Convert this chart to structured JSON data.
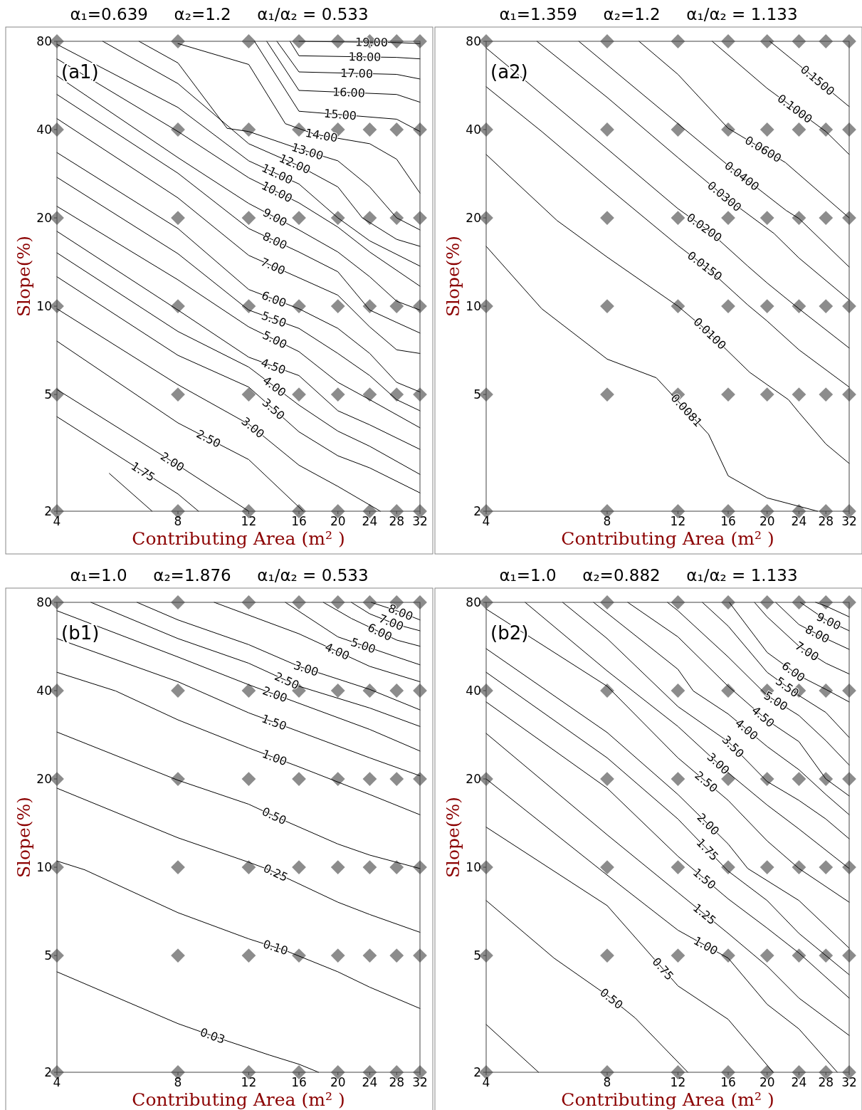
{
  "chart_data": [
    {
      "type": "line",
      "title": "α₁=0.639     α₂=1.2     α₁/α₂ = 0.533",
      "xlabel": "Contributing Area (m² )",
      "ylabel": "Slope(%)",
      "annotations": [
        "(a1)"
      ],
      "log": "xy",
      "xlim": [
        4,
        32
      ],
      "ylim": [
        2,
        80
      ],
      "xticks": [
        4,
        8,
        12,
        16,
        20,
        24,
        28,
        32
      ],
      "yticks": [
        2,
        5,
        10,
        20,
        40,
        80
      ],
      "marker": "none",
      "line_style": "solid",
      "series": [
        {
          "type": "scatter",
          "marker": "diamond",
          "color": "#8c8c8c",
          "x": [
            4,
            8,
            12,
            16,
            20,
            24,
            28,
            32,
            4,
            8,
            12,
            16,
            20,
            24,
            28,
            32,
            4,
            8,
            12,
            16,
            20,
            24,
            28,
            32,
            4,
            8,
            12,
            16,
            20,
            24,
            28,
            32,
            4,
            8,
            12,
            16,
            20,
            24,
            28,
            32,
            4,
            8,
            12,
            16,
            20,
            24,
            28,
            32
          ],
          "values": [
            2,
            2,
            2,
            2,
            2,
            2,
            2,
            2,
            5,
            5,
            5,
            5,
            5,
            5,
            5,
            5,
            10,
            10,
            10,
            10,
            10,
            10,
            10,
            10,
            20,
            20,
            20,
            20,
            20,
            20,
            20,
            20,
            40,
            40,
            40,
            40,
            40,
            40,
            40,
            40,
            80,
            80,
            80,
            80,
            80,
            80,
            80,
            80
          ]
        },
        {
          "name": "19.00",
          "color": "#000000",
          "x": [
            16,
            28,
            32
          ],
          "values": [
            80,
            79.2,
            78.6
          ]
        },
        {
          "name": "18.00",
          "color": "#000000",
          "x": [
            15.2,
            16,
            28,
            32
          ],
          "values": [
            80,
            71.4,
            70.5,
            69.7
          ]
        },
        {
          "name": "17.00",
          "color": "#000000",
          "x": [
            14.1,
            16,
            28,
            32
          ],
          "values": [
            80,
            62.9,
            61.7,
            59.5
          ]
        },
        {
          "name": "16.00",
          "color": "#000000",
          "x": [
            13.3,
            16,
            28,
            32
          ],
          "values": [
            80,
            54.4,
            52.7,
            49.6
          ]
        },
        {
          "name": "15.00",
          "color": "#000000",
          "x": [
            12.4,
            16,
            28,
            32
          ],
          "values": [
            80,
            46.2,
            43.4,
            39.4
          ]
        },
        {
          "name": "14.00",
          "color": "#000000",
          "x": [
            8,
            12,
            14.8,
            17.6,
            24,
            28,
            32
          ],
          "values": [
            78.6,
            66.7,
            41.9,
            38.5,
            35.8,
            31.7,
            24.3
          ]
        },
        {
          "name": "13.00",
          "color": "#000000",
          "x": [
            6.4,
            8,
            10.6,
            12,
            16,
            20,
            24,
            28,
            32
          ],
          "values": [
            80,
            67.5,
            40.4,
            39.4,
            34.4,
            31.3,
            25.5,
            20,
            18.2
          ]
        },
        {
          "name": "12.00",
          "color": "#000000",
          "x": [
            5.2,
            8,
            12,
            16,
            20,
            23,
            28,
            32
          ],
          "values": [
            80,
            57.4,
            35.8,
            30.1,
            25.5,
            20,
            16.9,
            16
          ]
        },
        {
          "name": "11.00",
          "color": "#000000",
          "x": [
            4,
            8,
            12,
            16,
            20,
            24,
            32
          ],
          "values": [
            78.1,
            47.6,
            31.3,
            26.1,
            20,
            16.7,
            13.7
          ]
        },
        {
          "name": "10.00",
          "color": "#000000",
          "x": [
            4,
            8,
            12,
            16,
            20,
            24,
            32
          ],
          "values": [
            69.7,
            39.4,
            27.4,
            22.5,
            18.6,
            15.3,
            11.7
          ]
        },
        {
          "name": "9.00",
          "color": "#000000",
          "x": [
            4,
            8,
            12,
            16,
            20,
            24,
            28,
            32
          ],
          "values": [
            61,
            32.1,
            22.4,
            18.2,
            15.3,
            12.6,
            10.4,
            9.7
          ]
        },
        {
          "name": "8.00",
          "color": "#000000",
          "x": [
            4,
            8,
            12,
            16,
            20,
            24,
            28,
            32
          ],
          "values": [
            52.7,
            28.4,
            18.4,
            15.3,
            13.1,
            9.7,
            8.8,
            8.1
          ]
        },
        {
          "name": "7.00",
          "color": "#000000",
          "x": [
            4,
            8,
            12,
            16,
            20,
            24,
            28,
            32
          ],
          "values": [
            43.6,
            23.4,
            14.9,
            12.5,
            10.9,
            8.5,
            7.1,
            6.9
          ]
        },
        {
          "name": "6.00",
          "color": "#000000",
          "x": [
            4,
            8,
            12,
            16,
            20,
            24,
            28,
            32
          ],
          "values": [
            33.4,
            18.4,
            11.4,
            9.8,
            8.4,
            6.9,
            5.5,
            5.1
          ]
        },
        {
          "name": "5.50",
          "color": "#000000",
          "x": [
            4,
            8,
            12,
            16,
            20,
            24,
            28,
            32
          ],
          "values": [
            27.5,
            15.1,
            9.7,
            8.4,
            6.9,
            5.8,
            4.8,
            4.4
          ]
        },
        {
          "name": "5.00",
          "color": "#000000",
          "x": [
            4,
            8,
            12,
            16,
            20,
            24,
            32
          ],
          "values": [
            21.9,
            12.3,
            8.5,
            7,
            5.5,
            4.8,
            3.85
          ]
        },
        {
          "name": "4.50",
          "color": "#000000",
          "x": [
            4,
            8,
            12,
            16,
            20,
            24,
            32
          ],
          "values": [
            18,
            9.7,
            6.7,
            5.8,
            4.4,
            3.94,
            3.25
          ]
        },
        {
          "name": "4.00",
          "color": "#000000",
          "x": [
            4,
            8,
            12,
            16,
            20,
            24,
            32
          ],
          "values": [
            15.2,
            8.2,
            6.2,
            4.6,
            3.75,
            3.33,
            2.67
          ]
        },
        {
          "name": "3.50",
          "color": "#000000",
          "x": [
            4,
            8,
            12,
            16,
            20,
            24,
            32
          ],
          "values": [
            12.6,
            6.8,
            5.3,
            3.73,
            3.09,
            2.81,
            2.31
          ]
        },
        {
          "name": "3.00",
          "color": "#000000",
          "x": [
            4,
            8,
            12,
            16,
            20,
            25.5
          ],
          "values": [
            9.8,
            5.4,
            3.96,
            2.87,
            2.43,
            2
          ]
        },
        {
          "name": "2.50",
          "color": "#000000",
          "x": [
            4,
            8,
            12,
            16.4
          ],
          "values": [
            7.6,
            4,
            3,
            2
          ]
        },
        {
          "name": "2.00",
          "color": "#000000",
          "x": [
            4,
            8,
            12
          ],
          "values": [
            5.2,
            2.87,
            2
          ]
        },
        {
          "name": "1.75",
          "color": "#000000",
          "x": [
            4,
            8,
            9
          ],
          "values": [
            4.2,
            2.29,
            2
          ]
        },
        {
          "color": "#000000",
          "x": [
            5.4,
            6.9
          ],
          "values": [
            2.69,
            2
          ]
        }
      ]
    },
    {
      "type": "line",
      "title": "α₁=1.359     α₂=1.2     α₁/α₂ = 1.133",
      "xlabel": "Contributing Area (m² )",
      "ylabel": "Slope(%)",
      "annotations": [
        "(a2)"
      ],
      "log": "xy",
      "xlim": [
        4,
        32
      ],
      "ylim": [
        2,
        80
      ],
      "xticks": [
        4,
        8,
        12,
        16,
        20,
        24,
        28,
        32
      ],
      "yticks": [
        2,
        5,
        10,
        20,
        40,
        80
      ],
      "marker": "none",
      "line_style": "solid",
      "series": [
        {
          "type": "scatter",
          "marker": "diamond",
          "color": "#8c8c8c",
          "x": [
            4,
            8,
            12,
            16,
            20,
            24,
            28,
            32,
            4,
            8,
            12,
            16,
            20,
            24,
            28,
            32,
            4,
            8,
            12,
            16,
            20,
            24,
            28,
            32,
            4,
            8,
            12,
            16,
            20,
            24,
            28,
            32,
            4,
            8,
            12,
            16,
            20,
            24,
            28,
            32,
            4,
            8,
            12,
            16,
            20,
            24,
            28,
            32
          ],
          "values": [
            2,
            2,
            2,
            2,
            2,
            2,
            2,
            2,
            5,
            5,
            5,
            5,
            5,
            5,
            5,
            5,
            10,
            10,
            10,
            10,
            10,
            10,
            10,
            10,
            20,
            20,
            20,
            20,
            20,
            20,
            20,
            20,
            40,
            40,
            40,
            40,
            40,
            40,
            40,
            40,
            80,
            80,
            80,
            80,
            80,
            80,
            80,
            80
          ]
        },
        {
          "name": "0.1500",
          "color": "#000000",
          "x": [
            20.3,
            24,
            32
          ],
          "values": [
            80,
            66.4,
            47.9
          ]
        },
        {
          "name": "0.1000",
          "color": "#000000",
          "x": [
            14.6,
            20,
            28,
            32
          ],
          "values": [
            80,
            55.3,
            39.4,
            32.9
          ]
        },
        {
          "name": "0.0600",
          "color": "#000000",
          "x": [
            9.6,
            12,
            16,
            22.2,
            32
          ],
          "values": [
            80,
            61.7,
            40.4,
            30.9,
            20
          ]
        },
        {
          "name": "0.0400",
          "color": "#000000",
          "x": [
            6.8,
            12,
            16,
            22.3,
            24,
            32
          ],
          "values": [
            80,
            41.9,
            30.2,
            21.2,
            19.9,
            13.6
          ]
        },
        {
          "name": "0.0300",
          "color": "#000000",
          "x": [
            5.35,
            8,
            12,
            16,
            20.8,
            24,
            32
          ],
          "values": [
            80,
            51.5,
            32.1,
            23.1,
            17.7,
            14.6,
            10.5
          ]
        },
        {
          "name": "0.0200",
          "color": "#000000",
          "x": [
            4,
            8,
            12,
            14.3,
            17.9,
            20,
            24,
            32
          ],
          "values": [
            75.9,
            34.4,
            21.5,
            18.1,
            13.7,
            12,
            9.8,
            7.2
          ]
        },
        {
          "name": "0.0150",
          "color": "#000000",
          "x": [
            4,
            5.5,
            8,
            12,
            14.1,
            17.9,
            20,
            24,
            32
          ],
          "values": [
            56,
            39.4,
            25.5,
            16.1,
            13.6,
            10.1,
            8.9,
            7.1,
            5.3
          ]
        },
        {
          "name": "0.0100",
          "color": "#000000",
          "x": [
            4,
            6,
            8,
            12,
            14.1,
            18.1,
            20,
            22.6,
            24,
            28,
            32
          ],
          "values": [
            32.9,
            19.6,
            14.7,
            10,
            8.3,
            5.95,
            5.4,
            4.8,
            4.34,
            3.39,
            2.91
          ]
        },
        {
          "name": "0.0081",
          "color": "#000000",
          "x": [
            4,
            5.5,
            8,
            10.6,
            14.3,
            16,
            20,
            26.7
          ],
          "values": [
            16,
            9.8,
            6.6,
            5.7,
            3.66,
            2.64,
            2.22,
            2
          ]
        }
      ]
    },
    {
      "type": "line",
      "title": "α₁=1.0     α₂=1.876     α₁/α₂ = 0.533",
      "xlabel": "Contributing Area (m² )",
      "ylabel": "Slope(%)",
      "annotations": [
        "(b1)"
      ],
      "log": "xy",
      "xlim": [
        4,
        32
      ],
      "ylim": [
        2,
        80
      ],
      "xticks": [
        4,
        8,
        12,
        16,
        20,
        24,
        28,
        32
      ],
      "yticks": [
        2,
        5,
        10,
        20,
        40,
        80
      ],
      "marker": "none",
      "line_style": "solid",
      "series": [
        {
          "type": "scatter",
          "marker": "diamond",
          "color": "#8c8c8c",
          "x": [
            4,
            8,
            12,
            16,
            20,
            24,
            28,
            32,
            4,
            8,
            12,
            16,
            20,
            24,
            28,
            32,
            4,
            8,
            12,
            16,
            20,
            24,
            28,
            32,
            4,
            8,
            12,
            16,
            20,
            24,
            28,
            32,
            4,
            8,
            12,
            16,
            20,
            24,
            28,
            32,
            4,
            8,
            12,
            16,
            20,
            24,
            28,
            32
          ],
          "values": [
            2,
            2,
            2,
            2,
            2,
            2,
            2,
            2,
            5,
            5,
            5,
            5,
            5,
            5,
            5,
            5,
            10,
            10,
            10,
            10,
            10,
            10,
            10,
            10,
            20,
            20,
            20,
            20,
            20,
            20,
            20,
            20,
            40,
            40,
            40,
            40,
            40,
            40,
            40,
            40,
            80,
            80,
            80,
            80,
            80,
            80,
            80,
            80
          ]
        },
        {
          "name": "8.00",
          "color": "#000000",
          "x": [
            24.2,
            28,
            32
          ],
          "values": [
            80,
            74.9,
            69.7
          ]
        },
        {
          "name": "7.00",
          "color": "#000000",
          "x": [
            21.6,
            24,
            28,
            32
          ],
          "values": [
            80,
            73.1,
            67.2,
            64
          ]
        },
        {
          "name": "6.00",
          "color": "#000000",
          "x": [
            18.4,
            21.6,
            28,
            32
          ],
          "values": [
            80,
            70.5,
            59.5,
            56.7
          ]
        },
        {
          "name": "5.00",
          "color": "#000000",
          "x": [
            14.8,
            20,
            28,
            32
          ],
          "values": [
            80,
            61,
            52.1,
            49
          ]
        },
        {
          "name": "4.00",
          "color": "#000000",
          "x": [
            9.85,
            16,
            24,
            32
          ],
          "values": [
            80,
            62.5,
            48.4,
            42.9
          ]
        },
        {
          "name": "3.00",
          "color": "#000000",
          "x": [
            6.33,
            8,
            12,
            16,
            24,
            32
          ],
          "values": [
            80,
            69.7,
            57.4,
            48.4,
            40.4,
            34.4
          ]
        },
        {
          "name": "2.50",
          "color": "#000000",
          "x": [
            4.86,
            8,
            12,
            16,
            24,
            32
          ],
          "values": [
            80,
            60.2,
            49.6,
            41.4,
            34.9,
            30.2
          ]
        },
        {
          "name": "2.00",
          "color": "#000000",
          "x": [
            4,
            8,
            12,
            24,
            32
          ],
          "values": [
            74.9,
            52.1,
            41.9,
            29.5,
            24.9
          ]
        },
        {
          "name": "1.50",
          "color": "#000000",
          "x": [
            4,
            8,
            12,
            24,
            32
          ],
          "values": [
            60.2,
            42.9,
            33.6,
            23.6,
            20.5
          ]
        },
        {
          "name": "1.00",
          "color": "#000000",
          "x": [
            4,
            5.6,
            8,
            12,
            16,
            24,
            32
          ],
          "values": [
            46.2,
            39.9,
            31.8,
            25.5,
            22,
            17.7,
            15.1
          ]
        },
        {
          "name": "0.50",
          "color": "#000000",
          "x": [
            4,
            8,
            12,
            14.1,
            20,
            24,
            32
          ],
          "values": [
            28.9,
            19.8,
            16.4,
            14.8,
            12,
            11,
            9.9
          ]
        },
        {
          "name": "0.25",
          "color": "#000000",
          "x": [
            4,
            8,
            12,
            13.5,
            20,
            24,
            32
          ],
          "values": [
            18.6,
            12.6,
            10.4,
            9.8,
            7.6,
            6.9,
            6
          ]
        },
        {
          "name": "0.10",
          "color": "#000000",
          "x": [
            4,
            4.69,
            8,
            12,
            14.8,
            20,
            24,
            32
          ],
          "values": [
            10.5,
            9.8,
            7,
            5.7,
            5.2,
            4.4,
            3.9,
            3.3
          ]
        },
        {
          "name": "0.03",
          "color": "#000000",
          "x": [
            4,
            8,
            10.4,
            13.5,
            16,
            17.9
          ],
          "values": [
            4.4,
            2.93,
            2.58,
            2.29,
            2.13,
            2
          ]
        }
      ]
    },
    {
      "type": "line",
      "title": "α₁=1.0     α₂=0.882     α₁/α₂ = 1.133",
      "xlabel": "Contributing Area (m² )",
      "ylabel": "Slope(%)",
      "annotations": [
        "(b2)"
      ],
      "log": "xy",
      "xlim": [
        4,
        32
      ],
      "ylim": [
        2,
        80
      ],
      "xticks": [
        4,
        8,
        12,
        16,
        20,
        24,
        28,
        32
      ],
      "yticks": [
        2,
        5,
        10,
        20,
        40,
        80
      ],
      "marker": "none",
      "line_style": "solid",
      "series": [
        {
          "type": "scatter",
          "marker": "diamond",
          "color": "#8c8c8c",
          "x": [
            4,
            8,
            12,
            16,
            20,
            24,
            28,
            32,
            4,
            8,
            12,
            16,
            20,
            24,
            28,
            32,
            4,
            8,
            12,
            16,
            20,
            24,
            28,
            32,
            4,
            8,
            12,
            16,
            20,
            24,
            28,
            32,
            4,
            8,
            12,
            16,
            20,
            24,
            28,
            32,
            4,
            8,
            12,
            16,
            20,
            24,
            28,
            32
          ],
          "values": [
            2,
            2,
            2,
            2,
            2,
            2,
            2,
            2,
            5,
            5,
            5,
            5,
            5,
            5,
            5,
            5,
            10,
            10,
            10,
            10,
            10,
            10,
            10,
            10,
            20,
            20,
            20,
            20,
            20,
            20,
            20,
            20,
            40,
            40,
            40,
            40,
            40,
            40,
            40,
            40,
            80,
            80,
            80,
            80,
            80,
            80,
            80,
            80
          ]
        },
        {
          "color": "#000000",
          "x": [
            26.4,
            28,
            32
          ],
          "values": [
            80,
            77.7,
            71.4
          ]
        },
        {
          "name": "9.00",
          "color": "#000000",
          "x": [
            24.2,
            28,
            32
          ],
          "values": [
            80,
            69.7,
            64
          ]
        },
        {
          "name": "8.00",
          "color": "#000000",
          "x": [
            21,
            24,
            28,
            32
          ],
          "values": [
            80,
            67.2,
            60.2,
            55.3
          ]
        },
        {
          "name": "7.00",
          "color": "#000000",
          "x": [
            18.6,
            20,
            24,
            28,
            32
          ],
          "values": [
            80,
            71.4,
            56.7,
            49.6,
            45.6
          ]
        },
        {
          "name": "6.00",
          "color": "#000000",
          "x": [
            16.1,
            20,
            24,
            28,
            32
          ],
          "values": [
            80,
            54,
            45,
            40.4,
            36.6
          ]
        },
        {
          "name": "5.50",
          "color": "#000000",
          "x": [
            13.8,
            16,
            20,
            24,
            28,
            32
          ],
          "values": [
            80,
            66.4,
            46.2,
            38.5,
            33.7,
            27.7
          ]
        },
        {
          "name": "5.00",
          "color": "#000000",
          "x": [
            11.3,
            12,
            16,
            20,
            24,
            28,
            32
          ],
          "values": [
            80,
            74.9,
            52.1,
            38.5,
            32.9,
            27,
            22.3
          ]
        },
        {
          "name": "4.50",
          "color": "#000000",
          "x": [
            9,
            12,
            16,
            20,
            24,
            28,
            32
          ],
          "values": [
            80,
            61,
            41.4,
            31.7,
            26.8,
            20,
            17.5
          ]
        },
        {
          "name": "4.00",
          "color": "#000000",
          "x": [
            7.4,
            12,
            13.1,
            16,
            20,
            24,
            28,
            32
          ],
          "values": [
            80,
            47.3,
            39.9,
            33.3,
            25.8,
            21.5,
            17.7,
            15.1
          ]
        },
        {
          "name": "3.50",
          "color": "#000000",
          "x": [
            6.2,
            8,
            12,
            16,
            20,
            24,
            28,
            32
          ],
          "values": [
            80,
            60.2,
            35.3,
            26.8,
            19.6,
            16.9,
            14.6,
            12.5
          ]
        },
        {
          "name": "3.00",
          "color": "#000000",
          "x": [
            5,
            8,
            12,
            16,
            20,
            24,
            32
          ],
          "values": [
            80,
            46.7,
            30.2,
            21,
            16.3,
            13.5,
            9.9
          ]
        },
        {
          "name": "2.50",
          "color": "#000000",
          "x": [
            4,
            8,
            12,
            16,
            20,
            24,
            32
          ],
          "values": [
            75.9,
            41.4,
            23.6,
            16.9,
            12.3,
            9.9,
            7.6
          ]
        },
        {
          "name": "2.00",
          "color": "#000000",
          "x": [
            4,
            8,
            12,
            16,
            17.9,
            24,
            32
          ],
          "values": [
            55.6,
            28.8,
            17.7,
            12,
            9.9,
            7.7,
            5.3
          ]
        },
        {
          "name": "1.75",
          "color": "#000000",
          "x": [
            4,
            8,
            12,
            16,
            20,
            24,
            32
          ],
          "values": [
            46.2,
            23.6,
            14.6,
            9.7,
            7.7,
            5.95,
            4.3
          ]
        },
        {
          "name": "1.50",
          "color": "#000000",
          "x": [
            4,
            8,
            12,
            16,
            20,
            24,
            32
          ],
          "values": [
            36.6,
            18.6,
            10.9,
            7.8,
            6.2,
            5.1,
            3.58
          ]
        },
        {
          "name": "1.25",
          "color": "#000000",
          "x": [
            4,
            8,
            12,
            16,
            20,
            24,
            32
          ],
          "values": [
            28.6,
            12.9,
            8.2,
            5.95,
            4.6,
            3.58,
            2.67
          ]
        },
        {
          "name": "1.00",
          "color": "#000000",
          "x": [
            4,
            8,
            12,
            16,
            20,
            24,
            29.9
          ],
          "values": [
            20,
            9.4,
            6.1,
            4.9,
            3.41,
            2.81,
            2
          ]
        },
        {
          "name": "0.75",
          "color": "#000000",
          "x": [
            4,
            8,
            12,
            16,
            20.7
          ],
          "values": [
            13.7,
            7.4,
            3.94,
            3.03,
            2
          ]
        },
        {
          "name": "0.50",
          "color": "#000000",
          "x": [
            4,
            5.9,
            8,
            9.4,
            12.7
          ],
          "values": [
            7.7,
            4.9,
            3.66,
            3.06,
            2
          ]
        },
        {
          "color": "#000000",
          "x": [
            4,
            5.4
          ],
          "values": [
            2.91,
            2
          ]
        }
      ]
    }
  ]
}
